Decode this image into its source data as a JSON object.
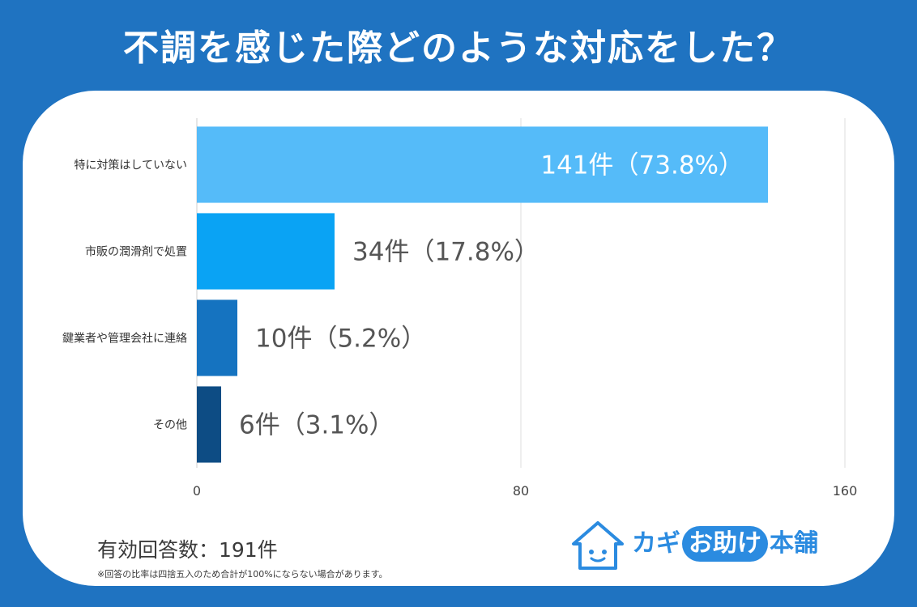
{
  "header": {
    "title": "不調を感じた際どのような対応をした？"
  },
  "chart_data": {
    "type": "bar",
    "orientation": "horizontal",
    "categories": [
      "特に対策はしていない",
      "市販の潤滑剤で処置",
      "鍵業者や管理会社に連絡",
      "その他"
    ],
    "values": [
      141,
      34,
      10,
      6
    ],
    "value_labels": [
      "141件（73.8%）",
      "34件（17.8%）",
      "10件（5.2%）",
      "6件（3.1%）"
    ],
    "xlim": [
      0,
      160
    ],
    "xticks": [
      0,
      80,
      160
    ],
    "grid": true,
    "bar_colors": [
      "#55bbf9",
      "#0aa3f4",
      "#1573c0",
      "#0d4c84"
    ],
    "label_colors": [
      "#ffffff",
      "#555555",
      "#555555",
      "#555555"
    ]
  },
  "footer": {
    "count_label": "有効回答数：191件",
    "note": "※回答の比率は四捨五入のため合計が100%にならない場合があります。"
  },
  "logo": {
    "prefix": "カギ",
    "highlight": "お助け",
    "suffix": "本舗",
    "color": "#2b8be0"
  }
}
